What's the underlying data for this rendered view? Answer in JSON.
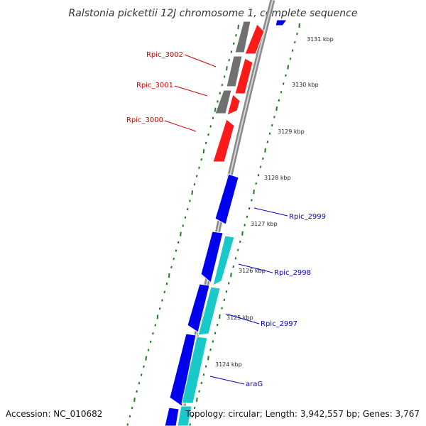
{
  "title": "Ralstonia pickettii 12J chromosome 1, complete sequence",
  "accession": "Accession: NC_010682",
  "topology": "Topology: circular; Length: 3,942,557 bp; Genes: 3,767",
  "colors": {
    "backbone": "#8a8a8a",
    "tick": "#1f7a1f",
    "forward_gene": "#ff1a1a",
    "forward_label": "#cc0000",
    "reverse_gene": "#0000ee",
    "reverse_label": "#0000cc",
    "feature_gray": "#707070",
    "feature_cyan": "#19c8c8"
  },
  "scale_ticks": [
    "3131 kbp",
    "3130 kbp",
    "3129 kbp",
    "3128 kbp",
    "3127 kbp",
    "3126 kbp",
    "3125 kbp",
    "3124 kbp"
  ],
  "gene_labels": [
    {
      "text": "Rpic_3002",
      "strand": "forward"
    },
    {
      "text": "Rpic_3001",
      "strand": "forward"
    },
    {
      "text": "Rpic_3000",
      "strand": "forward"
    },
    {
      "text": "Rpic_2999",
      "strand": "reverse"
    },
    {
      "text": "Rpic_2998",
      "strand": "reverse"
    },
    {
      "text": "Rpic_2997",
      "strand": "reverse"
    },
    {
      "text": "araG",
      "strand": "reverse"
    }
  ]
}
